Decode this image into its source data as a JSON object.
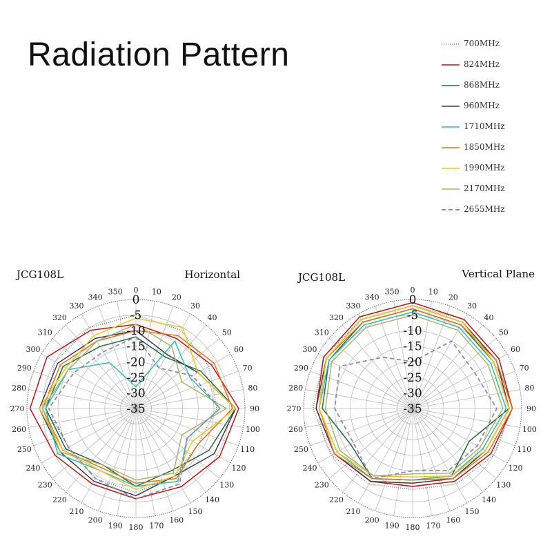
{
  "title": "Radiation Pattern",
  "legend": [
    {
      "label": "700MHz",
      "color": "#777777",
      "dash": "1,2"
    },
    {
      "label": "824MHz",
      "color": "#cc1111",
      "dash": ""
    },
    {
      "label": "868MHz",
      "color": "#1e6b3c",
      "dash": ""
    },
    {
      "label": "960MHz",
      "color": "#3d3a52",
      "dash": ""
    },
    {
      "label": "1710MHz",
      "color": "#2ebfb0",
      "dash": ""
    },
    {
      "label": "1850MHz",
      "color": "#e8701a",
      "dash": ""
    },
    {
      "label": "1990MHz",
      "color": "#f2c51b",
      "dash": ""
    },
    {
      "label": "2170MHz",
      "color": "#a9b46e",
      "dash": ""
    },
    {
      "label": "2655MHz",
      "color": "#8f8aa8",
      "dash": "6,4"
    }
  ],
  "chart_data": [
    {
      "type": "polar",
      "model": "JCG108L",
      "title": "Horizontal",
      "r_range": [
        -35,
        0
      ],
      "radial_ticks": [
        0,
        -5,
        -10,
        -15,
        -20,
        -25,
        -30,
        -35
      ],
      "angle_ticks": [
        0,
        10,
        20,
        30,
        40,
        50,
        60,
        70,
        80,
        90,
        100,
        110,
        120,
        130,
        140,
        150,
        160,
        170,
        180,
        190,
        200,
        210,
        220,
        230,
        240,
        250,
        260,
        270,
        280,
        290,
        300,
        310,
        320,
        330,
        340,
        350
      ],
      "angles": [
        0,
        30,
        60,
        90,
        120,
        150,
        180,
        210,
        240,
        270,
        300,
        330
      ],
      "series": [
        {
          "name": "700MHz",
          "values": [
            -5,
            -6,
            -8,
            -9,
            -12,
            -10,
            -8,
            -9,
            -10,
            -6,
            -5,
            -5
          ]
        },
        {
          "name": "824MHz",
          "values": [
            -8,
            -9,
            -7,
            -2,
            -4,
            -6,
            -6,
            -7,
            -5,
            -1,
            -2,
            -6
          ]
        },
        {
          "name": "868MHz",
          "values": [
            -12,
            -16,
            -11,
            -3,
            -8,
            -12,
            -10,
            -14,
            -9,
            -6,
            -8,
            -12
          ]
        },
        {
          "name": "960MHz",
          "values": [
            -10,
            -15,
            -12,
            -3,
            -6,
            -10,
            -7,
            -8,
            -7,
            -4,
            -6,
            -9
          ]
        },
        {
          "name": "1710MHz",
          "values": [
            -28,
            -10,
            -15,
            -8,
            -16,
            -8,
            -10,
            -12,
            -6,
            -6,
            -10,
            -18
          ]
        },
        {
          "name": "1850MHz",
          "values": [
            -10,
            -8,
            -6,
            -4,
            -12,
            -9,
            -11,
            -13,
            -8,
            -5,
            -7,
            -10
          ]
        },
        {
          "name": "1990MHz",
          "values": [
            -6,
            -5,
            -12,
            -3,
            -14,
            -10,
            -9,
            -12,
            -8,
            -4,
            -9,
            -8
          ]
        },
        {
          "name": "2170MHz",
          "values": [
            -8,
            -12,
            -18,
            -6,
            -18,
            -11,
            -12,
            -14,
            -7,
            -5,
            -10,
            -10
          ]
        },
        {
          "name": "2655MHz",
          "values": [
            -12,
            -20,
            -14,
            -8,
            -16,
            -7,
            -6,
            -9,
            -10,
            -7,
            -12,
            -14
          ]
        }
      ]
    },
    {
      "type": "polar",
      "model": "JCG108L",
      "title": "Vertical Plane",
      "r_range": [
        -35,
        0
      ],
      "radial_ticks": [
        0,
        -5,
        -10,
        -15,
        -20,
        -25,
        -30,
        -35
      ],
      "angle_ticks": [
        0,
        10,
        20,
        30,
        40,
        50,
        60,
        70,
        80,
        90,
        100,
        110,
        120,
        130,
        140,
        150,
        160,
        170,
        180,
        190,
        200,
        210,
        220,
        230,
        240,
        250,
        260,
        270,
        280,
        290,
        300,
        310,
        320,
        330,
        340,
        350
      ],
      "angles": [
        0,
        30,
        60,
        90,
        120,
        150,
        180,
        210,
        240,
        270,
        300,
        330
      ],
      "series": [
        {
          "name": "700MHz",
          "values": [
            -2,
            -2,
            -3,
            -3,
            -5,
            -7,
            -9,
            -7,
            -5,
            -3,
            -2,
            -2
          ]
        },
        {
          "name": "824MHz",
          "values": [
            -1,
            -2,
            -3,
            -3,
            -6,
            -8,
            -10,
            -8,
            -6,
            -4,
            -2,
            -1
          ]
        },
        {
          "name": "868MHz",
          "values": [
            -3,
            -4,
            -5,
            -4,
            -14,
            -10,
            -12,
            -9,
            -12,
            -6,
            -4,
            -3
          ]
        },
        {
          "name": "960MHz",
          "values": [
            -2,
            -3,
            -4,
            -4,
            -8,
            -9,
            -11,
            -8,
            -6,
            -4,
            -3,
            -2
          ]
        },
        {
          "name": "1710MHz",
          "values": [
            -4,
            -5,
            -6,
            -5,
            -9,
            -10,
            -12,
            -9,
            -7,
            -5,
            -4,
            -4
          ]
        },
        {
          "name": "1850MHz",
          "values": [
            -3,
            -4,
            -4,
            -3,
            -7,
            -9,
            -12,
            -9,
            -6,
            -5,
            -3,
            -3
          ]
        },
        {
          "name": "1990MHz",
          "values": [
            -2,
            -3,
            -5,
            -4,
            -8,
            -10,
            -13,
            -10,
            -7,
            -5,
            -3,
            -2
          ]
        },
        {
          "name": "2170MHz",
          "values": [
            -5,
            -6,
            -7,
            -6,
            -10,
            -11,
            -14,
            -10,
            -8,
            -7,
            -5,
            -5
          ]
        },
        {
          "name": "2655MHz",
          "values": [
            -20,
            -10,
            -12,
            -8,
            -11,
            -12,
            -15,
            -9,
            -13,
            -10,
            -8,
            -16
          ]
        }
      ]
    }
  ]
}
